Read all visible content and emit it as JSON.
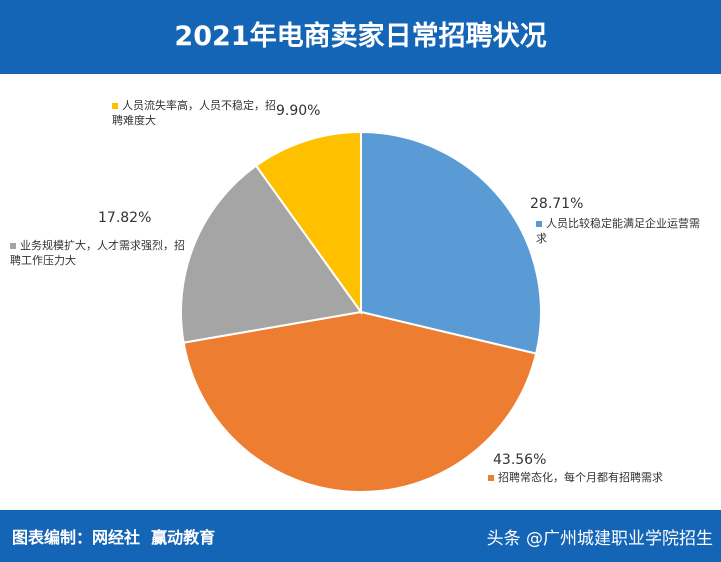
{
  "chart_data": {
    "type": "pie",
    "title": "2021年电商卖家日常招聘状况",
    "categories": [
      "人员比较稳定能满足企业运营需求",
      "招聘常态化，每个月都有招聘需求",
      "业务规模扩大，人才需求强烈，招聘工作压力大",
      "人员流失率高，人员不稳定，招聘难度大"
    ],
    "values": [
      28.71,
      43.56,
      17.82,
      9.9
    ],
    "value_labels": [
      "28.71%",
      "43.56%",
      "17.82%",
      "9.90%"
    ],
    "colors": [
      "#5b9bd5",
      "#ed7d31",
      "#a5a5a5",
      "#ffc000"
    ]
  },
  "footer": {
    "credit": "图表编制：网经社  赢动教育",
    "watermark": "头条 @广州城建职业学院招生"
  }
}
